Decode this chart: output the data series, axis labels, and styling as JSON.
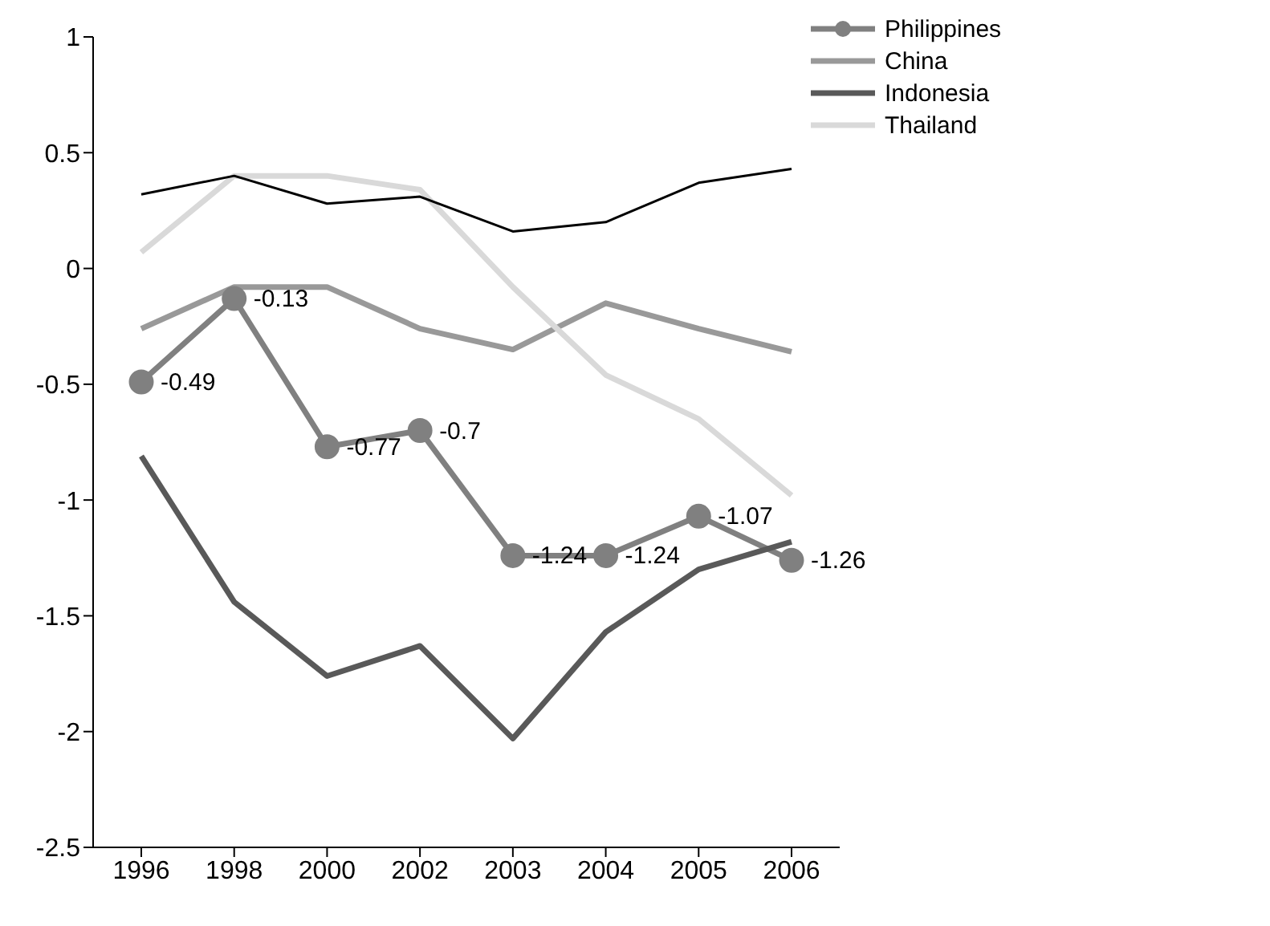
{
  "chart_data": {
    "type": "line",
    "categories": [
      "1996",
      "1998",
      "2000",
      "2002",
      "2003",
      "2004",
      "2005",
      "2006"
    ],
    "series": [
      {
        "name": "Philippines",
        "color": "#808080",
        "marker": "circle",
        "values": [
          -0.49,
          -0.13,
          -0.77,
          -0.7,
          -1.24,
          -1.24,
          -1.07,
          -1.26
        ],
        "value_labels": [
          "-0.49",
          "-0.13",
          "-0.77",
          "-0.7",
          "-1.24",
          "-1.24",
          "-1.07",
          "-1.26"
        ]
      },
      {
        "name": "China",
        "color": "#999999",
        "values": [
          -0.26,
          -0.08,
          -0.08,
          -0.26,
          -0.35,
          -0.15,
          -0.26,
          -0.36
        ]
      },
      {
        "name": "Indonesia",
        "color": "#595959",
        "values": [
          -0.81,
          -1.44,
          -1.76,
          -1.63,
          -2.03,
          -1.57,
          -1.3,
          -1.18
        ]
      },
      {
        "name": "Thailand",
        "color": "#d9d9d9",
        "values": [
          0.07,
          0.4,
          0.4,
          0.34,
          -0.08,
          -0.46,
          -0.65,
          -0.98
        ]
      },
      {
        "color": "#000000",
        "values": [
          0.32,
          0.4,
          0.28,
          0.31,
          0.16,
          0.2,
          0.37,
          0.43
        ]
      }
    ],
    "ylim": [
      -2.5,
      1
    ],
    "yticks": [
      -2.5,
      -2,
      -1.5,
      -1,
      -0.5,
      0,
      0.5,
      1
    ],
    "grid": false,
    "legend": "top right",
    "marker": "none"
  }
}
